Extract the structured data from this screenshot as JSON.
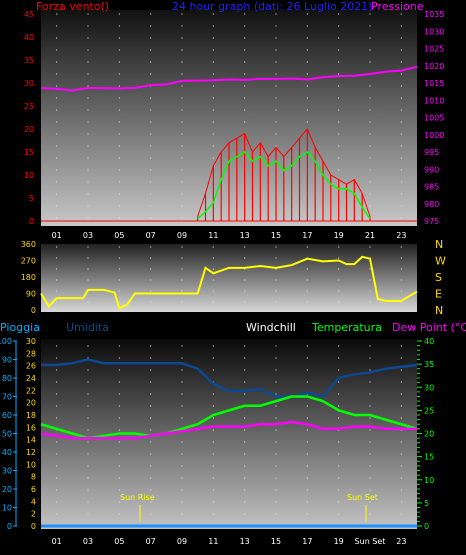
{
  "title": "24 hour graph (dati: 26 Luglio 2021)",
  "colors": {
    "wind": "#ff0000",
    "gust_band": "#ff0000",
    "pressure": "#ff00ff",
    "title": "#2222ff",
    "direction": "#ffff00",
    "humidity": "#0b4a92",
    "temperature": "#00ff00",
    "dewpoint": "#ff00ff",
    "rain": "#1e90ff",
    "cyan_label": "#00b0ff",
    "axis_yellow": "#ffd700",
    "axis_green": "#00ff00"
  },
  "x_ticks": [
    "01",
    "03",
    "05",
    "07",
    "09",
    "11",
    "13",
    "15",
    "17",
    "19",
    "21",
    "23"
  ],
  "x_ticks_bottom": [
    "01",
    "03",
    "05",
    "07",
    "09",
    "11",
    "13",
    "15",
    "17",
    "19",
    "Sun Set",
    "23"
  ],
  "chart_data": [
    {
      "type": "line",
      "id": "wind_pressure",
      "left_label": "Forza vento()",
      "right_label": "Pressione",
      "ylim_left": [
        0,
        45
      ],
      "ylim_right": [
        975,
        1035
      ],
      "yticks_left": [
        "45",
        "40",
        "35",
        "30",
        "25",
        "20",
        "15",
        "10",
        "5",
        "0"
      ],
      "yticks_right": [
        "1035",
        "1030",
        "1025",
        "1020",
        "1015",
        "1010",
        "1005",
        "1000",
        "995",
        "990",
        "985",
        "980",
        "975"
      ],
      "pressure": {
        "x": [
          0,
          1,
          2,
          3,
          4,
          5,
          6,
          7,
          8,
          9,
          10,
          11,
          12,
          13,
          14,
          15,
          16,
          17,
          18,
          19,
          20,
          21,
          22,
          23,
          24
        ],
        "y": [
          1013.5,
          1013.3,
          1012.8,
          1013.6,
          1013.5,
          1013.4,
          1013.6,
          1014.4,
          1014.6,
          1015.6,
          1015.7,
          1015.8,
          1016.0,
          1015.9,
          1016.2,
          1016.2,
          1016.3,
          1016.0,
          1016.7,
          1017.0,
          1017.1,
          1017.6,
          1018.3,
          1018.6,
          1019.7
        ]
      },
      "wind": {
        "x": [
          10,
          10.5,
          11,
          11.5,
          12,
          12.5,
          13,
          13.5,
          14,
          14.5,
          15,
          15.5,
          16,
          16.5,
          17,
          17.5,
          18,
          18.5,
          19,
          19.5,
          20,
          20.5,
          21
        ],
        "y": [
          0.5,
          2,
          4,
          9,
          13,
          14,
          15,
          13,
          14,
          12,
          13,
          11,
          12,
          14,
          15,
          13,
          10,
          8,
          7,
          7,
          6,
          3,
          0.5
        ]
      },
      "gust": {
        "x": [
          10,
          10.5,
          11,
          11.5,
          12,
          12.5,
          13,
          13.5,
          14,
          14.5,
          15,
          15.5,
          16,
          16.5,
          17,
          17.5,
          18,
          18.5,
          19,
          19.5,
          20,
          20.5,
          21
        ],
        "y": [
          1,
          6,
          12,
          15,
          17,
          18,
          19,
          15,
          17,
          14,
          16,
          14,
          16,
          18,
          20,
          16,
          13,
          10,
          9,
          8,
          9,
          6,
          1
        ]
      }
    },
    {
      "type": "line",
      "id": "wind_direction",
      "ylim": [
        0,
        360
      ],
      "yticks": [
        "360",
        "270",
        "180",
        "90",
        "0"
      ],
      "compass": [
        "N",
        "W",
        "S",
        "E",
        "N"
      ],
      "direction": {
        "x": [
          0,
          0.5,
          1,
          2,
          2.7,
          3,
          4,
          4.7,
          5,
          5.5,
          6,
          7,
          8,
          9,
          10,
          10.5,
          11,
          12,
          13,
          14,
          15,
          16,
          17,
          18,
          19,
          19.5,
          20,
          20.5,
          21,
          21.5,
          22,
          23,
          24
        ],
        "y": [
          90,
          20,
          65,
          65,
          65,
          110,
          110,
          95,
          10,
          30,
          90,
          90,
          90,
          90,
          90,
          230,
          200,
          230,
          230,
          240,
          230,
          245,
          280,
          265,
          270,
          250,
          250,
          290,
          280,
          60,
          50,
          50,
          100
        ]
      }
    },
    {
      "type": "line",
      "id": "temperature_humidity",
      "left_label": "Pioggia",
      "labels": [
        "Umidita",
        "Windchill",
        "Temperatura",
        "Dew Point (°C)"
      ],
      "ylim_pioggia": [
        0,
        100
      ],
      "ylim_umidita": [
        0,
        30
      ],
      "ylim_temp": [
        0,
        40
      ],
      "yticks_pioggia": [
        "100",
        "90",
        "80",
        "70",
        "60",
        "50",
        "40",
        "30",
        "20",
        "10",
        "0"
      ],
      "yticks_umidita": [
        "30",
        "28",
        "26",
        "24",
        "22",
        "20",
        "18",
        "16",
        "14",
        "12",
        "10",
        "8",
        "6",
        "4",
        "2",
        "0"
      ],
      "yticks_temp": [
        "40",
        "35",
        "30",
        "25",
        "20",
        "15",
        "10",
        "5",
        "0"
      ],
      "annotations": [
        "Sun Rise",
        "Sun Set"
      ],
      "humidity": {
        "x": [
          0,
          1,
          2,
          3,
          4,
          5,
          6,
          7,
          8,
          9,
          10,
          11,
          12,
          13,
          14,
          15,
          16,
          17,
          18,
          19,
          20,
          21,
          22,
          23,
          24
        ],
        "y": [
          87,
          87,
          88,
          90,
          88,
          88,
          88,
          88,
          88,
          88,
          85,
          77,
          73,
          73,
          74,
          70,
          70,
          72,
          70,
          80,
          82,
          83,
          85,
          86,
          87
        ]
      },
      "temperature": {
        "x": [
          0,
          1,
          2,
          3,
          4,
          5,
          6,
          7,
          8,
          9,
          10,
          11,
          12,
          13,
          14,
          15,
          16,
          17,
          18,
          19,
          20,
          21,
          22,
          23,
          24
        ],
        "y": [
          22,
          21,
          20,
          19,
          19.5,
          20,
          20,
          19.5,
          20,
          21,
          22,
          24,
          25,
          26,
          26,
          27,
          28,
          28,
          27,
          25,
          24,
          24,
          23,
          22,
          21
        ]
      },
      "dewpoint": {
        "x": [
          0,
          1,
          2,
          3,
          4,
          5,
          6,
          7,
          8,
          9,
          10,
          11,
          12,
          13,
          14,
          15,
          16,
          17,
          18,
          19,
          20,
          21,
          22,
          23,
          24
        ],
        "y": [
          20,
          19.5,
          19,
          19,
          19,
          19,
          19,
          19.5,
          20,
          20.5,
          21,
          21.5,
          21.5,
          21.5,
          22,
          22,
          22.5,
          22,
          21,
          21,
          21.5,
          21.5,
          21,
          21,
          21
        ]
      },
      "rain": {
        "x": [
          0,
          24
        ],
        "y": [
          0,
          0
        ]
      }
    }
  ]
}
